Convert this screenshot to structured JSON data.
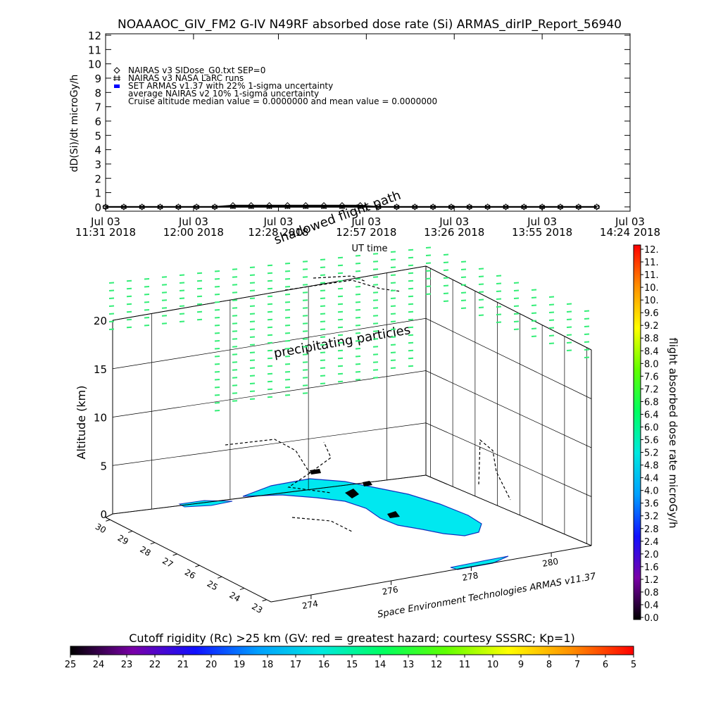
{
  "chart_data": [
    {
      "type": "line",
      "title": "NOAAAOC_GIV_FM2 G-IV   N49RF  absorbed dose rate (Si) ARMAS_dirIP_Report_56940",
      "y_label": "dD(Si)/dt microGy/h",
      "x_label": "UT time",
      "annotation": "Cruise altitude median value = 0.0000000 and mean value = 0.0000000",
      "xlim": [
        "2018-07-03T11:31",
        "2018-07-03T14:24"
      ],
      "xticks": [
        {
          "value": "2018-07-03T11:31",
          "label": [
            "Jul 03",
            "11:31 2018"
          ]
        },
        {
          "value": "2018-07-03T12:00",
          "label": [
            "Jul 03",
            "12:00 2018"
          ]
        },
        {
          "value": "2018-07-03T12:28",
          "label": [
            "Jul 03",
            "12:28 2018"
          ]
        },
        {
          "value": "2018-07-03T12:57",
          "label": [
            "Jul 03",
            "12:57 2018"
          ]
        },
        {
          "value": "2018-07-03T13:26",
          "label": [
            "Jul 03",
            "13:26 2018"
          ]
        },
        {
          "value": "2018-07-03T13:55",
          "label": [
            "Jul 03",
            "13:55 2018"
          ]
        },
        {
          "value": "2018-07-03T14:24",
          "label": [
            "Jul 03",
            "14:24 2018"
          ]
        }
      ],
      "ylim": [
        -0.3,
        12.1
      ],
      "yticks": [
        0,
        1,
        2,
        3,
        4,
        5,
        6,
        7,
        8,
        9,
        10,
        11,
        12
      ],
      "x": [
        "2018-07-03T11:31",
        "2018-07-03T11:37",
        "2018-07-03T11:43",
        "2018-07-03T11:49",
        "2018-07-03T11:55",
        "2018-07-03T12:01",
        "2018-07-03T12:07",
        "2018-07-03T12:13",
        "2018-07-03T12:19",
        "2018-07-03T12:25",
        "2018-07-03T12:31",
        "2018-07-03T12:37",
        "2018-07-03T12:43",
        "2018-07-03T12:49",
        "2018-07-03T12:55",
        "2018-07-03T13:01",
        "2018-07-03T13:07",
        "2018-07-03T13:13",
        "2018-07-03T13:19",
        "2018-07-03T13:25",
        "2018-07-03T13:31",
        "2018-07-03T13:37",
        "2018-07-03T13:43",
        "2018-07-03T13:49",
        "2018-07-03T13:55",
        "2018-07-03T14:01",
        "2018-07-03T14:07",
        "2018-07-03T14:13"
      ],
      "series": [
        {
          "name": "NAIRAS v3 SIDose_G0.txt SEP=0",
          "marker": "diamond",
          "color": "#000000",
          "values": [
            0,
            0,
            0,
            0,
            0,
            0,
            0,
            0.1,
            0.1,
            0.1,
            0.1,
            0.1,
            0.1,
            0.1,
            0.1,
            0,
            0,
            0,
            0,
            0,
            0,
            0,
            0,
            0,
            0,
            0,
            0,
            0
          ]
        },
        {
          "name": "NAIRAS v3 NASA LaRC runs",
          "marker": "hash",
          "color": "#000000",
          "values": [
            0,
            0,
            0,
            0,
            0,
            0,
            0,
            0,
            0,
            0,
            0,
            0,
            0,
            0,
            0,
            0,
            0,
            0,
            0,
            0,
            0,
            0,
            0,
            0,
            0,
            0,
            0,
            0
          ]
        },
        {
          "name": "SET ARMAS v1.37 with 22% 1-sigma uncertainty",
          "marker": "square",
          "color": "#0000ff",
          "values": [
            null,
            null,
            null,
            null,
            null,
            null,
            null,
            null,
            null,
            null,
            null,
            null,
            null,
            null,
            null,
            null,
            null,
            null,
            null,
            null,
            null,
            null,
            null,
            null,
            null,
            null,
            null,
            null
          ]
        },
        {
          "name": "average NAIRAS v2 10% 1-sigma uncertainty",
          "marker": "none",
          "color": "#000000",
          "values": [
            null,
            null,
            null,
            null,
            null,
            null,
            null,
            null,
            null,
            null,
            null,
            null,
            null,
            null,
            null,
            null,
            null,
            null,
            null,
            null,
            null,
            null,
            null,
            null,
            null,
            null,
            null,
            null
          ]
        }
      ]
    },
    {
      "type": "scatter3d",
      "z_label": "Altitude (km)",
      "annotations": [
        "shadowed flight path",
        "precipitating particles",
        "Space Environment Technologies ARMAS v11.37"
      ],
      "zlim": [
        0,
        20
      ],
      "zticks": [
        0,
        5,
        10,
        15,
        20
      ],
      "ylim": [
        30.2,
        22.8
      ],
      "yticks": [
        30,
        29,
        28,
        27,
        26,
        25,
        24,
        23
      ],
      "xlim": [
        273,
        281
      ],
      "xticks": [
        274,
        276,
        278,
        280
      ],
      "marker_color": "#33ee77",
      "land_color": "#00e8f0"
    },
    {
      "type": "colorbar",
      "orientation": "vertical",
      "label": "flight absorbed dose rate microGy/h",
      "lim": [
        0,
        11.6
      ],
      "ticks": [
        {
          "value": 0,
          "label": "0.0"
        },
        0.4,
        0.8,
        1.2,
        1.6,
        {
          "value": 2,
          "label": "2.0"
        },
        2.4,
        2.8,
        3.2,
        3.6,
        {
          "value": 4,
          "label": "4.0"
        },
        4.4,
        4.8,
        5.2,
        5.6,
        {
          "value": 6,
          "label": "6.0"
        },
        6.4,
        6.8,
        7.2,
        7.6,
        {
          "value": 8,
          "label": "8.0"
        },
        8.4,
        8.8,
        9.2,
        9.6,
        {
          "value": 10,
          "label": "10."
        },
        {
          "value": 10.4,
          "label": "10."
        },
        {
          "value": 10.8,
          "label": "11."
        },
        {
          "value": 11.2,
          "label": "11."
        },
        {
          "value": 11.6,
          "label": "12."
        }
      ],
      "colors": [
        "#000000",
        "#7a00a8",
        "#1010ff",
        "#00a0ff",
        "#00e8e0",
        "#00ff60",
        "#60ff00",
        "#ffff00",
        "#ff9000",
        "#ff0000"
      ]
    },
    {
      "type": "colorbar",
      "orientation": "horizontal",
      "label": "Cutoff rigidity (Rc) >25 km (GV: red = greatest hazard; courtesy SSSRC; Kp=1)",
      "lim": [
        25,
        5
      ],
      "ticks": [
        25,
        24,
        23,
        22,
        21,
        20,
        19,
        18,
        17,
        16,
        15,
        14,
        13,
        12,
        11,
        10,
        9,
        8,
        7,
        6,
        5
      ],
      "colors": [
        "#000000",
        "#7a00a8",
        "#1010ff",
        "#00a0ff",
        "#00e8e0",
        "#00ff60",
        "#60ff00",
        "#ffff00",
        "#ff9000",
        "#ff0000"
      ]
    }
  ]
}
